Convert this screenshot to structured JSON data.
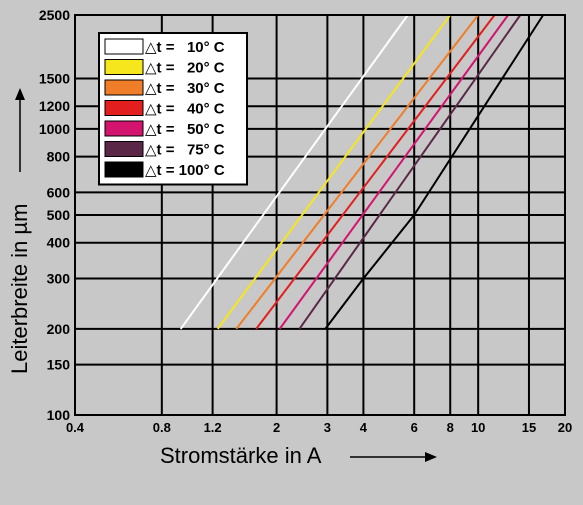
{
  "chart_data": {
    "type": "line",
    "xlabel": "Stromstärke in A",
    "ylabel": "Leiterbreite in µm",
    "x_scale": "log",
    "y_scale": "log",
    "xlim": [
      0.4,
      20
    ],
    "ylim": [
      100,
      2500
    ],
    "x_ticks": [
      0.4,
      0.8,
      1.2,
      2,
      3,
      4,
      6,
      8,
      10,
      15,
      20
    ],
    "y_ticks": [
      100,
      150,
      200,
      300,
      400,
      500,
      600,
      800,
      1000,
      1200,
      1500,
      2500
    ],
    "grid": true,
    "legend_placement": "top-left",
    "series": [
      {
        "name": "△t =   10° C",
        "color": "#ffffff",
        "points": [
          [
            0.93,
            200
          ],
          [
            5.7,
            2500
          ]
        ]
      },
      {
        "name": "△t =   20° C",
        "color": "#f5e61e",
        "points": [
          [
            1.25,
            200
          ],
          [
            8.0,
            2500
          ]
        ]
      },
      {
        "name": "△t =   30° C",
        "color": "#f07d28",
        "points": [
          [
            1.45,
            200
          ],
          [
            10.0,
            2500
          ]
        ]
      },
      {
        "name": "△t =   40° C",
        "color": "#e31e1e",
        "points": [
          [
            1.7,
            200
          ],
          [
            11.4,
            2500
          ]
        ]
      },
      {
        "name": "△t =   50° C",
        "color": "#d2146e",
        "points": [
          [
            2.05,
            200
          ],
          [
            12.7,
            2500
          ]
        ]
      },
      {
        "name": "△t =   75° C",
        "color": "#5a2846",
        "points": [
          [
            2.4,
            200
          ],
          [
            14.0,
            2500
          ]
        ]
      },
      {
        "name": "△t = 100° C",
        "color": "#000000",
        "points": [
          [
            2.95,
            200
          ],
          [
            4.0,
            300
          ],
          [
            6.0,
            500
          ],
          [
            16.8,
            2500
          ]
        ]
      }
    ]
  }
}
